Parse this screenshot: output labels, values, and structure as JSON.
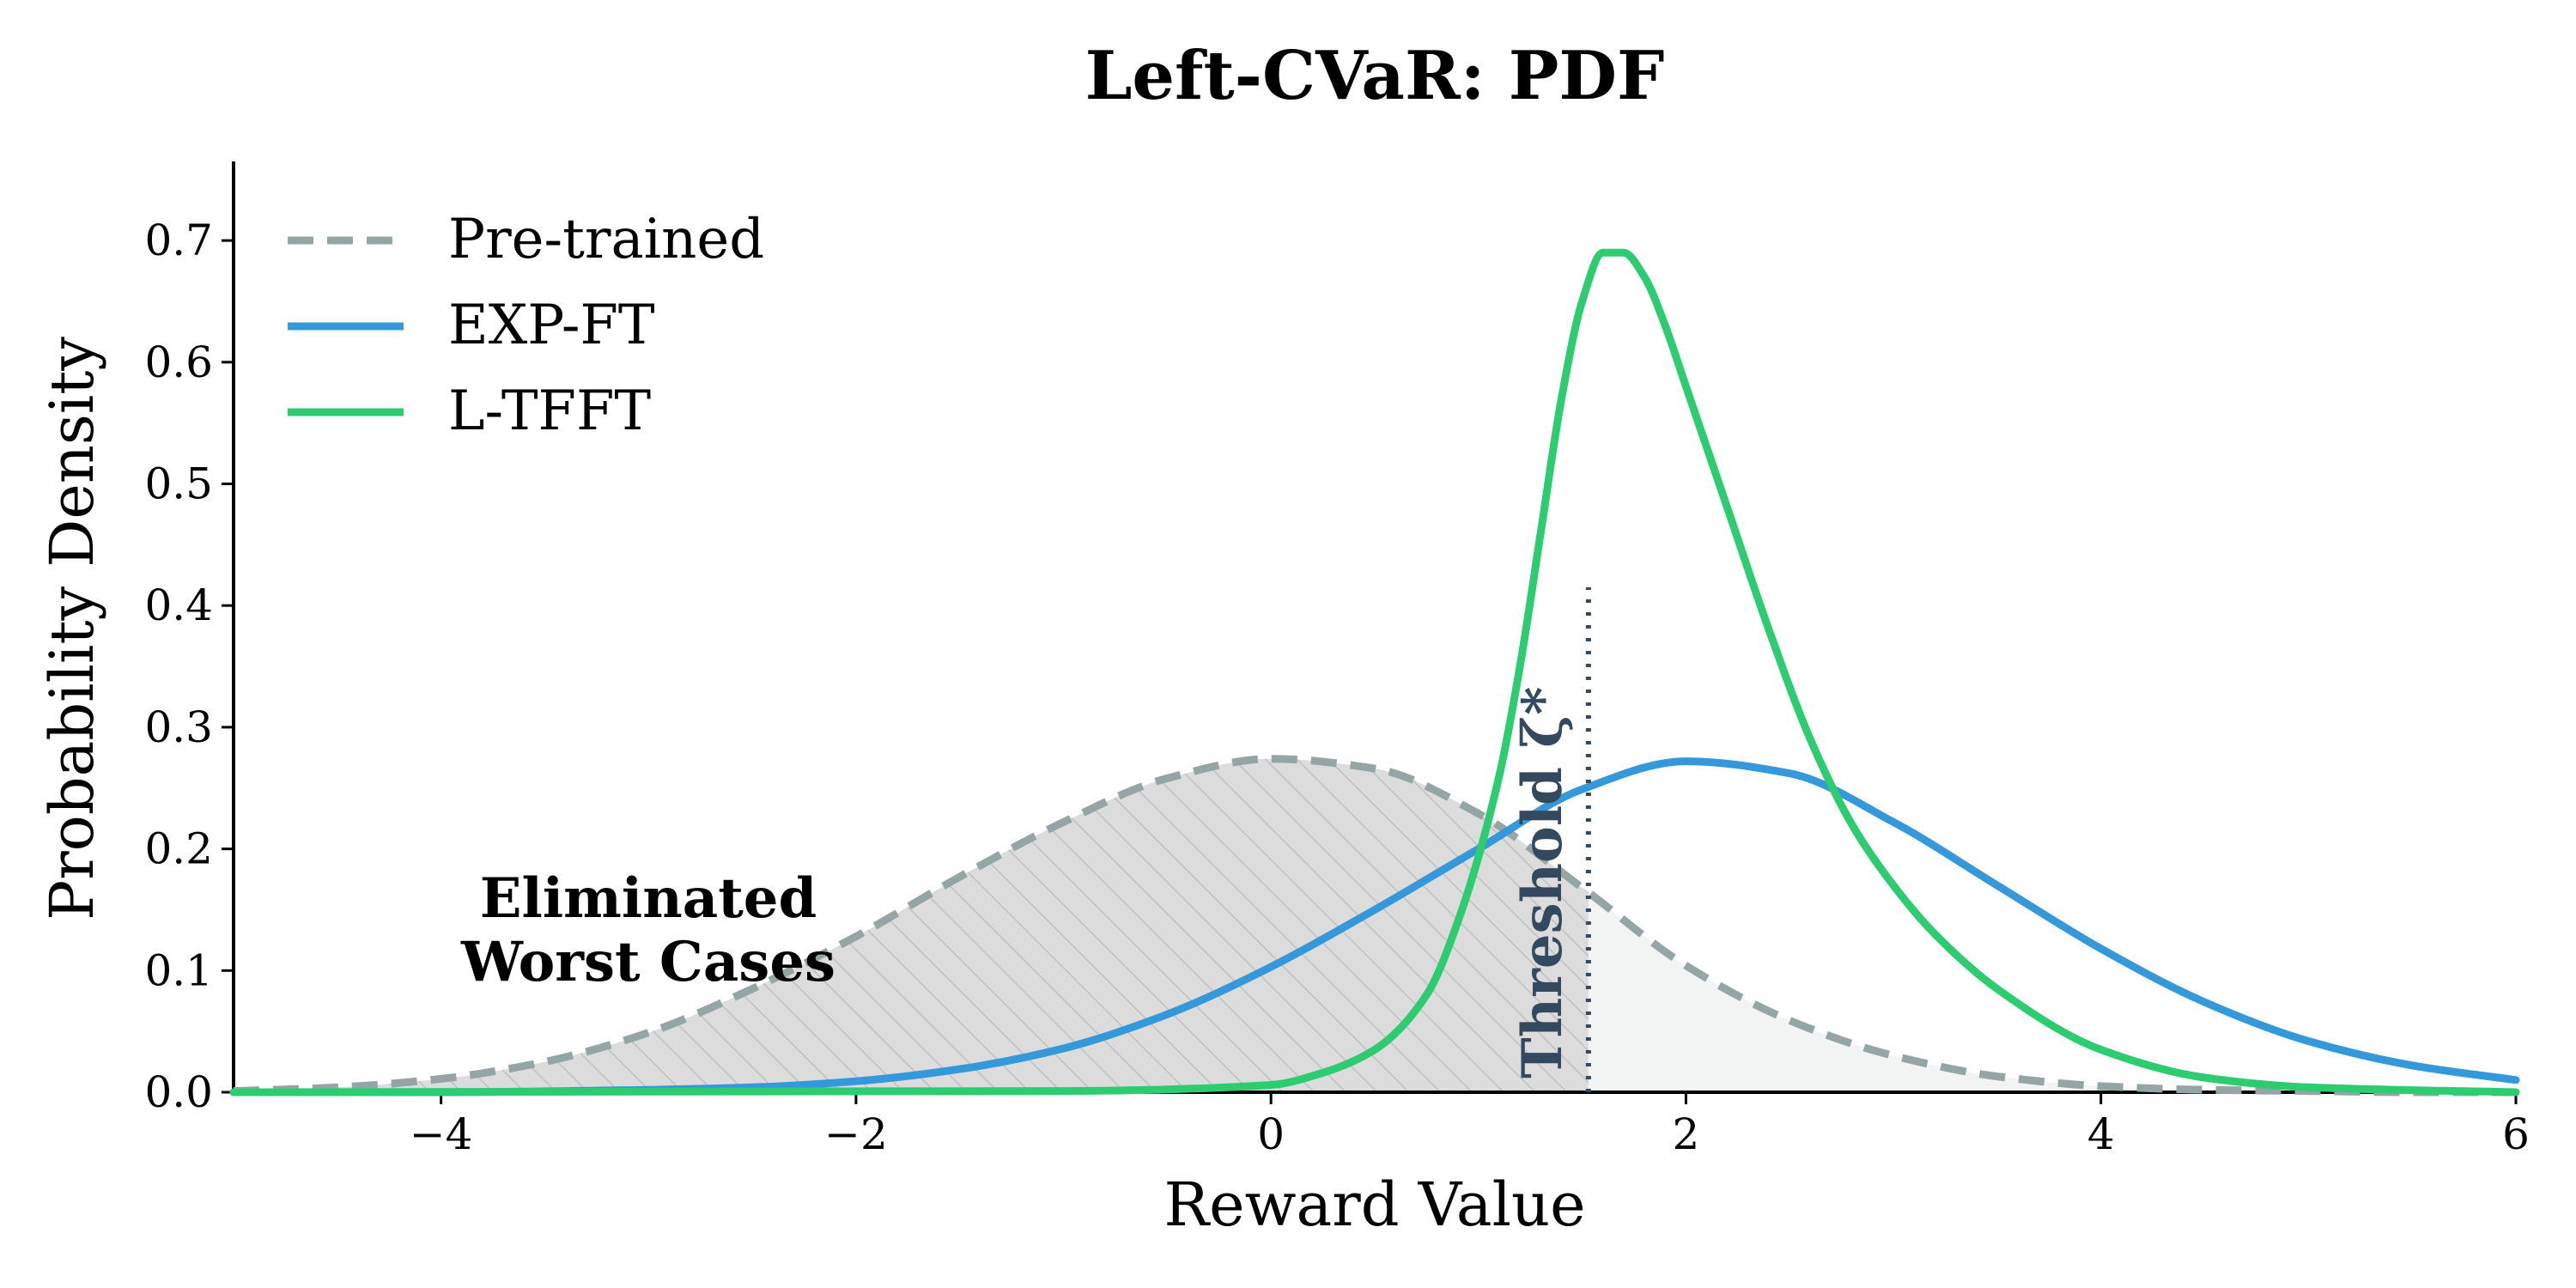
{
  "chart_data": {
    "type": "line",
    "title": "Left-CVaR: PDF",
    "xlabel": "Reward Value",
    "ylabel": "Probability Density",
    "xlim": [
      -5,
      6
    ],
    "ylim": [
      0,
      0.765
    ],
    "xticks": [
      -4,
      -2,
      0,
      2,
      4,
      6
    ],
    "xtick_labels": [
      "−4",
      "−2",
      "0",
      "2",
      "4",
      "6"
    ],
    "yticks": [
      0.0,
      0.1,
      0.2,
      0.3,
      0.4,
      0.5,
      0.6,
      0.7
    ],
    "ytick_labels": [
      "0.0",
      "0.1",
      "0.2",
      "0.3",
      "0.4",
      "0.5",
      "0.6",
      "0.7"
    ],
    "grid": false,
    "legend_position": "top-left",
    "series": [
      {
        "name": "Pre-trained",
        "color": "#95a5a6",
        "style": "dashed",
        "x": [
          -5,
          -4.5,
          -4,
          -3.5,
          -3,
          -2.5,
          -2,
          -1.5,
          -1,
          -0.5,
          0,
          0.5,
          1,
          1.5,
          2,
          2.5,
          3,
          3.5,
          4,
          4.5,
          5,
          5.5,
          6
        ],
        "y": [
          0.001,
          0.004,
          0.011,
          0.025,
          0.049,
          0.085,
          0.128,
          0.177,
          0.222,
          0.258,
          0.274,
          0.266,
          0.229,
          0.168,
          0.104,
          0.059,
          0.03,
          0.013,
          0.005,
          0.002,
          0.001,
          0.0,
          0.0
        ]
      },
      {
        "name": "EXP-FT",
        "color": "#3498db",
        "style": "solid",
        "x": [
          -5,
          -4,
          -3,
          -2.5,
          -2,
          -1.5,
          -1,
          -0.5,
          0,
          0.5,
          1,
          1.5,
          2,
          2.5,
          3,
          3.5,
          4,
          4.5,
          5,
          5.5,
          6
        ],
        "y": [
          0.0,
          0.0,
          0.002,
          0.004,
          0.009,
          0.019,
          0.036,
          0.064,
          0.103,
          0.15,
          0.2,
          0.249,
          0.272,
          0.262,
          0.222,
          0.17,
          0.118,
          0.074,
          0.042,
          0.022,
          0.01
        ]
      },
      {
        "name": "L-TFFT",
        "color": "#2ecc71",
        "style": "solid",
        "x": [
          -5,
          -1,
          0,
          0.25,
          0.5,
          0.75,
          0.9,
          1.1,
          1.2,
          1.3,
          1.4,
          1.5,
          1.6,
          1.7,
          1.8,
          1.9,
          2.0,
          2.2,
          2.4,
          2.6,
          2.8,
          3.0,
          3.2,
          3.5,
          4.0,
          4.5,
          5.0,
          6.0
        ],
        "y": [
          0.0,
          0.001,
          0.006,
          0.016,
          0.035,
          0.08,
          0.14,
          0.26,
          0.35,
          0.46,
          0.57,
          0.65,
          0.69,
          0.69,
          0.67,
          0.63,
          0.58,
          0.48,
          0.38,
          0.29,
          0.22,
          0.17,
          0.13,
          0.085,
          0.035,
          0.012,
          0.004,
          0.0
        ]
      }
    ],
    "threshold": {
      "x": 1.53,
      "y_top": 0.415,
      "label": "Threshold ζ*"
    },
    "annotation": {
      "line1": "Eliminated",
      "line2": "Worst Cases"
    }
  }
}
